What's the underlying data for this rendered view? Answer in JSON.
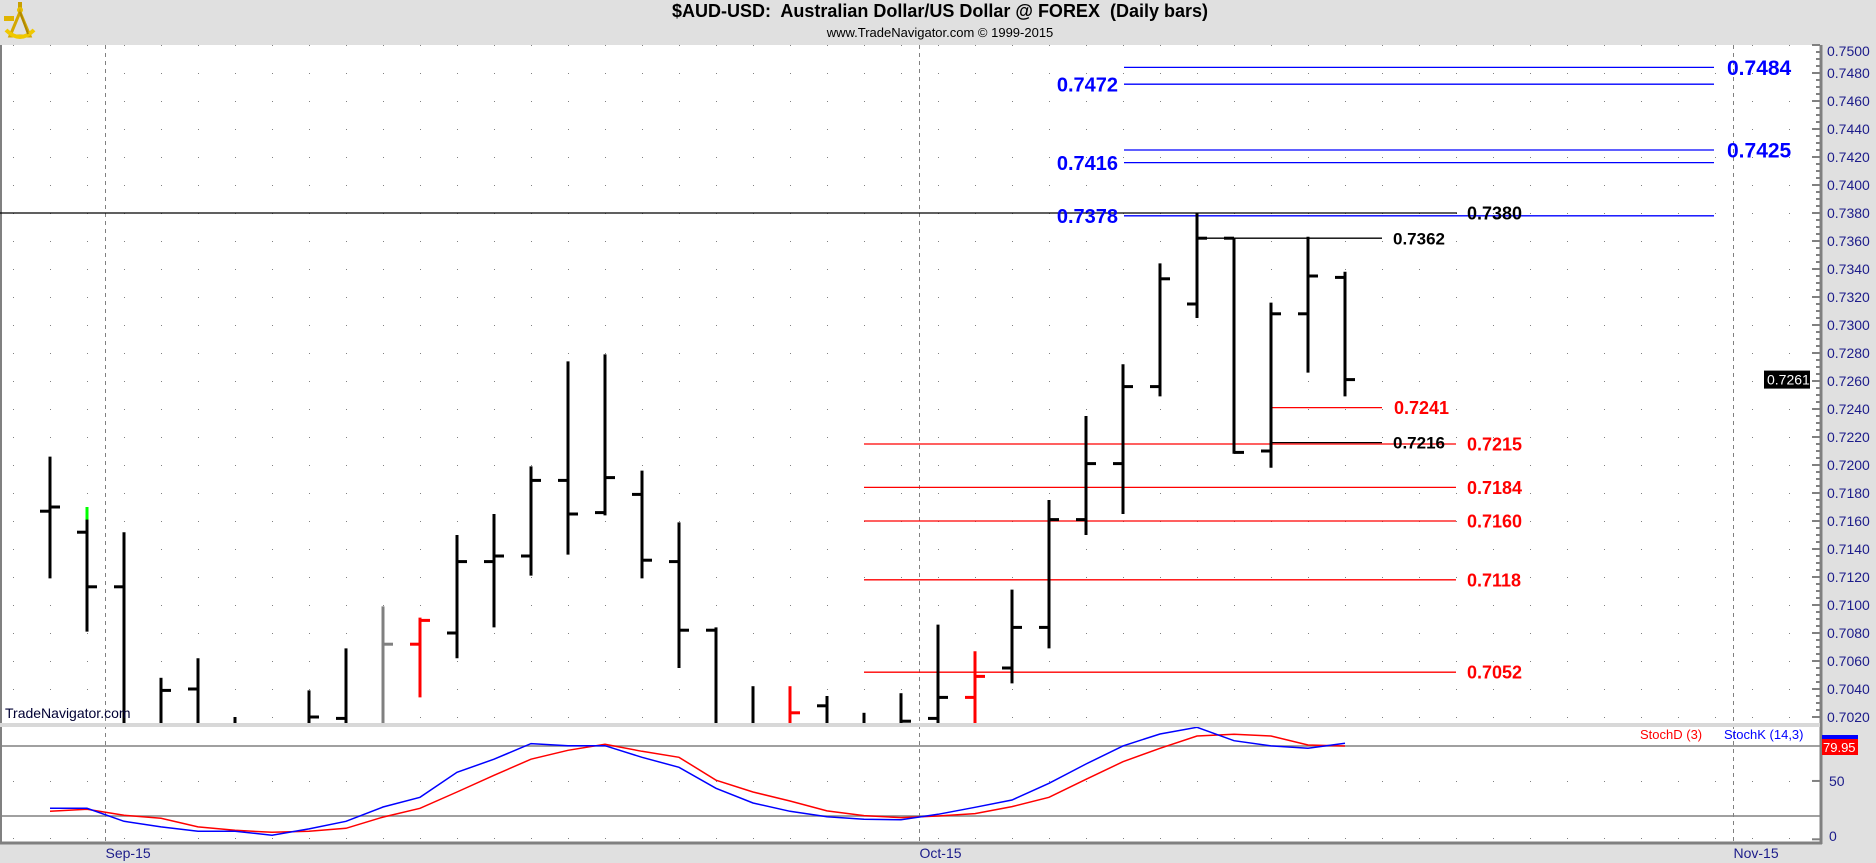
{
  "header": {
    "title": "$AUD-USD:  Australian Dollar/US Dollar @ FOREX  (Daily bars)",
    "subtitle": "www.TradeNavigator.com © 1999-2015",
    "logo_icon": "sextant-logo-icon"
  },
  "watermark": "TradeNavigator.com",
  "colors": {
    "background": "#e0e0e0",
    "panel": "#ffffff",
    "axis_text": "#1c1c8a",
    "up_blue": "#0000ff",
    "support_red": "#ff0000"
  },
  "chart_data": [
    {
      "type": "bar",
      "style": "ohlc",
      "title": "$AUD-USD:  Australian Dollar/US Dollar @ FOREX  (Daily bars)",
      "ylim": [
        0.7016,
        0.75
      ],
      "grid": "dotted",
      "x_ticks": [
        {
          "label": "Sep-15",
          "date": "2015-09-01"
        },
        {
          "label": "Oct-15",
          "date": "2015-10-01"
        },
        {
          "label": "Nov-15",
          "date": "2015-11-02"
        }
      ],
      "y_ticks": [
        "0.7020",
        "0.7040",
        "0.7060",
        "0.7080",
        "0.7100",
        "0.7120",
        "0.7140",
        "0.7160",
        "0.7180",
        "0.7200",
        "0.7220",
        "0.7240",
        "0.7260",
        "0.7280",
        "0.7300",
        "0.7320",
        "0.7340",
        "0.7360",
        "0.7380",
        "0.7400",
        "0.7420",
        "0.7440",
        "0.7460",
        "0.7480",
        "0.7500"
      ],
      "last_price": {
        "label": "0.7261",
        "value": 0.7261
      },
      "bars": [
        {
          "date": "2015-08-28",
          "o": 0.7167,
          "h": 0.7206,
          "l": 0.7119,
          "c": 0.717,
          "color": "#000000"
        },
        {
          "date": "2015-08-31",
          "o": 0.7152,
          "h": 0.717,
          "l": 0.7081,
          "c": 0.7113,
          "color": "#000000",
          "top_segment": {
            "to": 0.7161,
            "color": "#00ff00"
          }
        },
        {
          "date": "2015-09-01",
          "o": 0.7113,
          "h": 0.7152,
          "l": null,
          "c": null,
          "color": "#000000"
        },
        {
          "date": "2015-09-02",
          "o": null,
          "h": 0.7048,
          "l": null,
          "c": 0.7039,
          "color": "#000000"
        },
        {
          "date": "2015-09-03",
          "o": 0.704,
          "h": 0.7062,
          "l": null,
          "c": null,
          "color": "#000000"
        },
        {
          "date": "2015-09-04",
          "o": null,
          "h": 0.702,
          "l": null,
          "c": null,
          "color": "#000000"
        },
        {
          "date": "2015-09-07",
          "o": null,
          "h": null,
          "l": null,
          "c": null,
          "color": "#000000"
        },
        {
          "date": "2015-09-08",
          "o": null,
          "h": 0.7039,
          "l": null,
          "c": 0.702,
          "color": "#000000"
        },
        {
          "date": "2015-09-09",
          "o": 0.7019,
          "h": 0.7069,
          "l": null,
          "c": null,
          "color": "#000000"
        },
        {
          "date": "2015-09-10",
          "o": null,
          "h": 0.7099,
          "l": null,
          "c": 0.7072,
          "color": "#808080"
        },
        {
          "date": "2015-09-11",
          "o": 0.7072,
          "h": 0.7091,
          "l": 0.7034,
          "c": 0.7089,
          "color": "#ff0000"
        },
        {
          "date": "2015-09-14",
          "o": 0.708,
          "h": 0.715,
          "l": 0.7062,
          "c": 0.7131,
          "color": "#000000"
        },
        {
          "date": "2015-09-15",
          "o": 0.7131,
          "h": 0.7165,
          "l": 0.7084,
          "c": 0.7135,
          "color": "#000000"
        },
        {
          "date": "2015-09-16",
          "o": 0.7135,
          "h": 0.7199,
          "l": 0.7121,
          "c": 0.7189,
          "color": "#000000"
        },
        {
          "date": "2015-09-17",
          "o": 0.7189,
          "h": 0.7274,
          "l": 0.7136,
          "c": 0.7165,
          "color": "#000000"
        },
        {
          "date": "2015-09-18",
          "o": 0.7166,
          "h": 0.7279,
          "l": 0.7164,
          "c": 0.7191,
          "color": "#000000"
        },
        {
          "date": "2015-09-21",
          "o": 0.7179,
          "h": 0.7196,
          "l": 0.7119,
          "c": 0.7132,
          "color": "#000000"
        },
        {
          "date": "2015-09-22",
          "o": 0.7131,
          "h": 0.7159,
          "l": 0.7055,
          "c": 0.7082,
          "color": "#000000"
        },
        {
          "date": "2015-09-23",
          "o": 0.7082,
          "h": 0.7084,
          "l": null,
          "c": null,
          "color": "#000000"
        },
        {
          "date": "2015-09-24",
          "o": null,
          "h": 0.7042,
          "l": null,
          "c": null,
          "color": "#000000"
        },
        {
          "date": "2015-09-25",
          "o": null,
          "h": 0.7042,
          "l": null,
          "c": 0.7023,
          "color": "#ff0000"
        },
        {
          "date": "2015-09-28",
          "o": 0.7028,
          "h": 0.7035,
          "l": null,
          "c": null,
          "color": "#000000"
        },
        {
          "date": "2015-09-29",
          "o": null,
          "h": 0.7023,
          "l": null,
          "c": null,
          "color": "#000000"
        },
        {
          "date": "2015-09-30",
          "o": null,
          "h": 0.7037,
          "l": null,
          "c": 0.7017,
          "color": "#000000"
        },
        {
          "date": "2015-10-01",
          "o": 0.7019,
          "h": 0.7086,
          "l": null,
          "c": 0.7034,
          "color": "#000000"
        },
        {
          "date": "2015-10-02",
          "o": 0.7034,
          "h": 0.7067,
          "l": null,
          "c": 0.7049,
          "color": "#ff0000"
        },
        {
          "date": "2015-10-05",
          "o": 0.7055,
          "h": 0.7111,
          "l": 0.7044,
          "c": 0.7084,
          "color": "#000000"
        },
        {
          "date": "2015-10-06",
          "o": 0.7084,
          "h": 0.7175,
          "l": 0.7069,
          "c": 0.7161,
          "color": "#000000"
        },
        {
          "date": "2015-10-07",
          "o": 0.7161,
          "h": 0.7235,
          "l": 0.715,
          "c": 0.7201,
          "color": "#000000"
        },
        {
          "date": "2015-10-08",
          "o": 0.7201,
          "h": 0.7272,
          "l": 0.7165,
          "c": 0.7256,
          "color": "#000000"
        },
        {
          "date": "2015-10-09",
          "o": 0.7256,
          "h": 0.7344,
          "l": 0.7249,
          "c": 0.7333,
          "color": "#000000"
        },
        {
          "date": "2015-10-12",
          "o": 0.7315,
          "h": 0.738,
          "l": 0.7305,
          "c": 0.7362,
          "color": "#000000"
        },
        {
          "date": "2015-10-13",
          "o": 0.7362,
          "h": 0.7362,
          "l": 0.7208,
          "c": 0.7209,
          "color": "#000000"
        },
        {
          "date": "2015-10-14",
          "o": 0.721,
          "h": 0.7316,
          "l": 0.7198,
          "c": 0.7308,
          "color": "#000000"
        },
        {
          "date": "2015-10-15",
          "o": 0.7308,
          "h": 0.7363,
          "l": 0.7266,
          "c": 0.7335,
          "color": "#000000"
        },
        {
          "date": "2015-10-16",
          "o": 0.7334,
          "h": 0.7338,
          "l": 0.7249,
          "c": 0.7261,
          "color": "#000000"
        }
      ],
      "levels": [
        {
          "value": 0.7484,
          "label": "0.7484",
          "color": "#0000ff"
        },
        {
          "value": 0.7472,
          "label": "0.7472",
          "color": "#0000ff"
        },
        {
          "value": 0.7425,
          "label": "0.7425",
          "color": "#0000ff"
        },
        {
          "value": 0.7416,
          "label": "0.7416",
          "color": "#0000ff"
        },
        {
          "value": 0.738,
          "label": "0.7380",
          "color": "#000000"
        },
        {
          "value": 0.7378,
          "label": "0.7378",
          "color": "#0000ff"
        },
        {
          "value": 0.7362,
          "label": "0.7362",
          "color": "#000000"
        },
        {
          "value": 0.7241,
          "label": "0.7241",
          "color": "#ff0000"
        },
        {
          "value": 0.7216,
          "label": "0.7216",
          "color": "#000000"
        },
        {
          "value": 0.7215,
          "label": "0.7215",
          "color": "#ff0000"
        },
        {
          "value": 0.7184,
          "label": "0.7184",
          "color": "#ff0000"
        },
        {
          "value": 0.716,
          "label": "0.7160",
          "color": "#ff0000"
        },
        {
          "value": 0.7118,
          "label": "0.7118",
          "color": "#ff0000"
        },
        {
          "value": 0.7052,
          "label": "0.7052",
          "color": "#ff0000"
        }
      ]
    },
    {
      "type": "line",
      "ylim": [
        0,
        100
      ],
      "y_ticks": [
        "50",
        "0"
      ],
      "reference_lines": [
        20,
        80
      ],
      "last_value_label": "79.95",
      "legend_placement": "top-right",
      "series": [
        {
          "name": "StochD (3)",
          "color": "#ff0000",
          "values": [
            24,
            25.7,
            20.6,
            18,
            10.6,
            7.7,
            6,
            6.9,
            9.4,
            19,
            26.6,
            40.5,
            54.8,
            68.6,
            76.3,
            81.4,
            75.4,
            70.3,
            50.6,
            40.5,
            32.8,
            24.3,
            20.3,
            18.6,
            20,
            22,
            28,
            36,
            51.4,
            66.5,
            78,
            88.5,
            90,
            88.5,
            80.8,
            79.95
          ]
        },
        {
          "name": "StochK (14,3)",
          "color": "#0000ff",
          "values": [
            26.6,
            26.6,
            15.4,
            10.6,
            6.9,
            6.9,
            3.4,
            8.9,
            15.4,
            27.7,
            36,
            57.4,
            68.6,
            82,
            80.2,
            80.2,
            70.3,
            61.7,
            43.7,
            31.1,
            24,
            19.4,
            17.1,
            16.8,
            21.4,
            27.4,
            33.7,
            48,
            64.5,
            80,
            90.2,
            96,
            84.5,
            80,
            78,
            82.3
          ]
        }
      ]
    }
  ]
}
